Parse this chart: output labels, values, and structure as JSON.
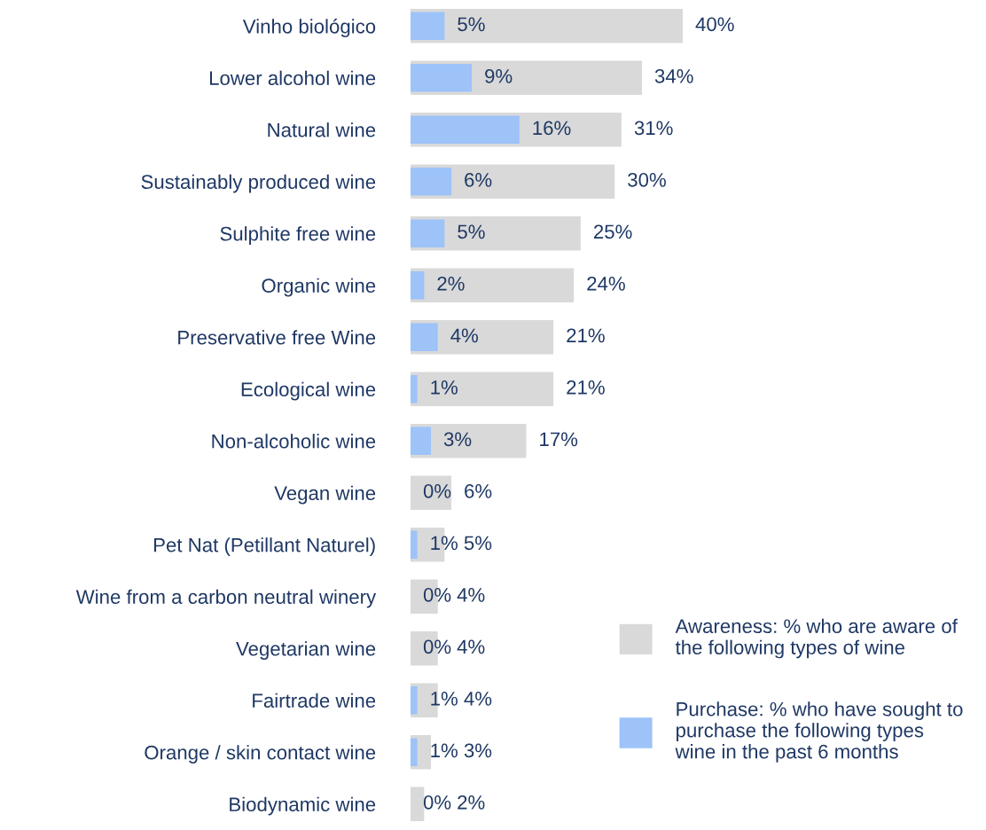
{
  "chart_data": {
    "type": "bar",
    "orientation": "horizontal",
    "legend": "bottom right",
    "categories": [
      "Vinho biológico",
      "Lower alcohol wine",
      "Natural wine",
      "Sustainably produced wine",
      "Sulphite free wine",
      "Organic wine",
      "Preservative free Wine",
      "Ecological wine",
      "Non-alcoholic wine",
      "Vegan wine",
      "Pet Nat (Petillant Naturel)",
      "Wine from a carbon neutral winery",
      "Vegetarian wine",
      "Fairtrade wine",
      "Orange / skin contact wine",
      "Biodynamic wine"
    ],
    "series": [
      {
        "name": "Awareness: % who are aware of\nthe following types of wine",
        "color": "#d9d9d9",
        "values": [
          40,
          34,
          31,
          30,
          25,
          24,
          21,
          21,
          17,
          6,
          5,
          4,
          4,
          4,
          3,
          2
        ],
        "value_labels": [
          "40%",
          "34%",
          "31%",
          "30%",
          "25%",
          "24%",
          "21%",
          "21%",
          "17%",
          "6%",
          "5%",
          "4%",
          "4%",
          "4%",
          "3%",
          "2%"
        ]
      },
      {
        "name": "Purchase: % who have sought to\npurchase the following types\nwine in the past 6 months",
        "color": "#9dc3f9",
        "values": [
          5,
          9,
          16,
          6,
          5,
          2,
          4,
          1,
          3,
          0,
          1,
          0,
          0,
          1,
          1,
          0
        ],
        "value_labels": [
          "5%",
          "9%",
          "16%",
          "6%",
          "5%",
          "2%",
          "4%",
          "1%",
          "3%",
          "0%",
          "1%",
          "0%",
          "0%",
          "1%",
          "1%",
          "0%"
        ]
      }
    ]
  }
}
